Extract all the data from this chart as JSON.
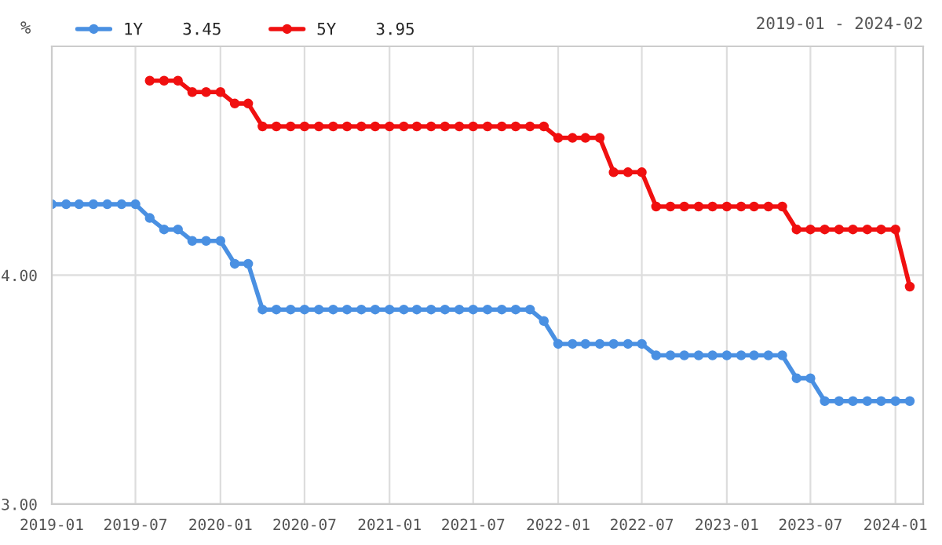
{
  "chart_data": {
    "type": "line",
    "subtitle": "2019-01 - 2024-02",
    "ylabel": "%",
    "x": [
      "2019-01",
      "2019-02",
      "2019-03",
      "2019-04",
      "2019-05",
      "2019-06",
      "2019-07",
      "2019-08",
      "2019-09",
      "2019-10",
      "2019-11",
      "2019-12",
      "2020-01",
      "2020-02",
      "2020-03",
      "2020-04",
      "2020-05",
      "2020-06",
      "2020-07",
      "2020-08",
      "2020-09",
      "2020-10",
      "2020-11",
      "2020-12",
      "2021-01",
      "2021-02",
      "2021-03",
      "2021-04",
      "2021-05",
      "2021-06",
      "2021-07",
      "2021-08",
      "2021-09",
      "2021-10",
      "2021-11",
      "2021-12",
      "2022-01",
      "2022-02",
      "2022-03",
      "2022-04",
      "2022-05",
      "2022-06",
      "2022-07",
      "2022-08",
      "2022-09",
      "2022-10",
      "2022-11",
      "2022-12",
      "2023-01",
      "2023-02",
      "2023-03",
      "2023-04",
      "2023-05",
      "2023-06",
      "2023-07",
      "2023-08",
      "2023-09",
      "2023-10",
      "2023-11",
      "2023-12",
      "2024-01",
      "2024-02"
    ],
    "series": [
      {
        "name": "1Y    3.45",
        "color": "#4a90e2",
        "values": [
          4.31,
          4.31,
          4.31,
          4.31,
          4.31,
          4.31,
          4.31,
          4.25,
          4.2,
          4.2,
          4.15,
          4.15,
          4.15,
          4.05,
          4.05,
          3.85,
          3.85,
          3.85,
          3.85,
          3.85,
          3.85,
          3.85,
          3.85,
          3.85,
          3.85,
          3.85,
          3.85,
          3.85,
          3.85,
          3.85,
          3.85,
          3.85,
          3.85,
          3.85,
          3.85,
          3.8,
          3.7,
          3.7,
          3.7,
          3.7,
          3.7,
          3.7,
          3.7,
          3.65,
          3.65,
          3.65,
          3.65,
          3.65,
          3.65,
          3.65,
          3.65,
          3.65,
          3.65,
          3.55,
          3.55,
          3.45,
          3.45,
          3.45,
          3.45,
          3.45,
          3.45,
          3.45
        ]
      },
      {
        "name": "5Y    3.95",
        "color": "#f01010",
        "values": [
          null,
          null,
          null,
          null,
          null,
          null,
          null,
          4.85,
          4.85,
          4.85,
          4.8,
          4.8,
          4.8,
          4.75,
          4.75,
          4.65,
          4.65,
          4.65,
          4.65,
          4.65,
          4.65,
          4.65,
          4.65,
          4.65,
          4.65,
          4.65,
          4.65,
          4.65,
          4.65,
          4.65,
          4.65,
          4.65,
          4.65,
          4.65,
          4.65,
          4.65,
          4.6,
          4.6,
          4.6,
          4.6,
          4.45,
          4.45,
          4.45,
          4.3,
          4.3,
          4.3,
          4.3,
          4.3,
          4.3,
          4.3,
          4.3,
          4.3,
          4.3,
          4.2,
          4.2,
          4.2,
          4.2,
          4.2,
          4.2,
          4.2,
          4.2,
          3.95
        ]
      }
    ],
    "xlim": [
      "2019-01",
      "2024-03"
    ],
    "xticks": [
      "2019-01",
      "2019-07",
      "2020-01",
      "2020-07",
      "2021-01",
      "2021-07",
      "2022-01",
      "2022-07",
      "2023-01",
      "2023-07",
      "2024-01"
    ],
    "ylim": [
      3.0,
      5.0
    ],
    "yticks": [
      {
        "value": 3,
        "label": "3.00"
      },
      {
        "value": 4,
        "label": "4.00"
      }
    ],
    "grid": true,
    "legend": "top left",
    "marker": "circle",
    "line_style": "solid"
  }
}
